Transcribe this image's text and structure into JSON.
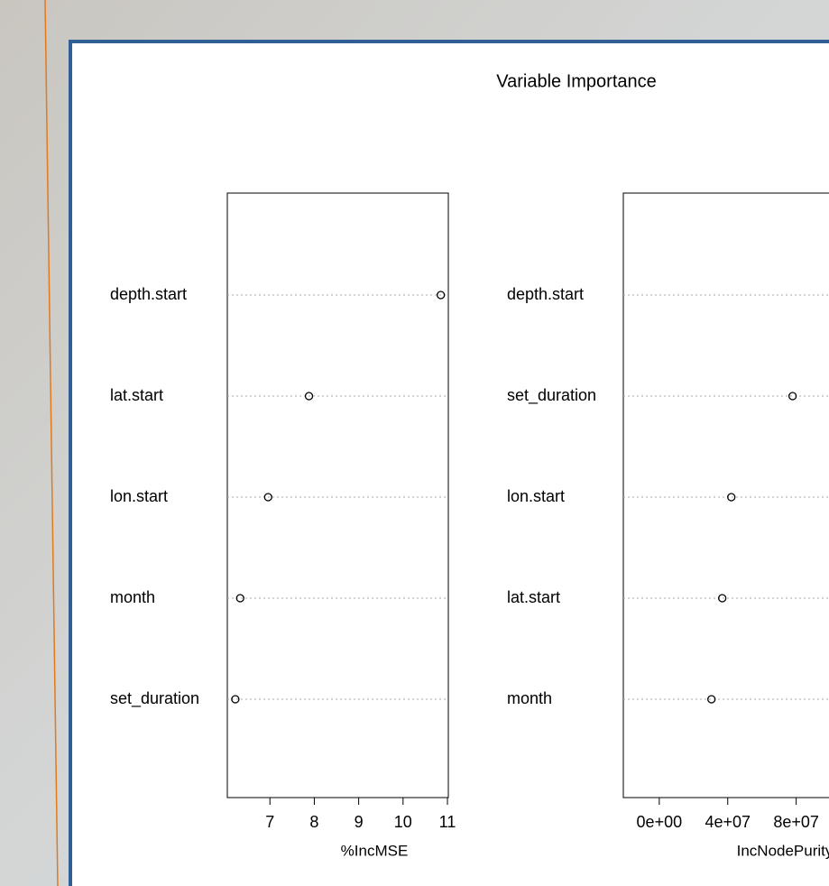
{
  "title": "Variable Importance",
  "chart_data": [
    {
      "type": "dot",
      "categories": [
        "depth.start",
        "lat.start",
        "lon.start",
        "month",
        "set_duration"
      ],
      "values": [
        10.85,
        7.88,
        6.96,
        6.33,
        6.22
      ],
      "color": "#000000",
      "xlabel": "%IncMSE",
      "xlim": [
        6.04,
        11.02
      ],
      "xticks": [
        7,
        8,
        9,
        10,
        11
      ],
      "grid": true
    },
    {
      "type": "dot",
      "categories": [
        "depth.start",
        "set_duration",
        "lon.start",
        "lat.start",
        "month"
      ],
      "values": [
        null,
        77900000,
        42100000,
        36800000,
        30500000
      ],
      "color": "#000000",
      "xlabel": "IncNodePurity",
      "xlim": [
        -21000000,
        125000000
      ],
      "xticks": [
        {
          "value": 0,
          "label": "0e+00"
        },
        {
          "value": 40000000,
          "label": "4e+07"
        },
        {
          "value": 80000000,
          "label": "8e+07"
        }
      ],
      "grid": true
    }
  ]
}
